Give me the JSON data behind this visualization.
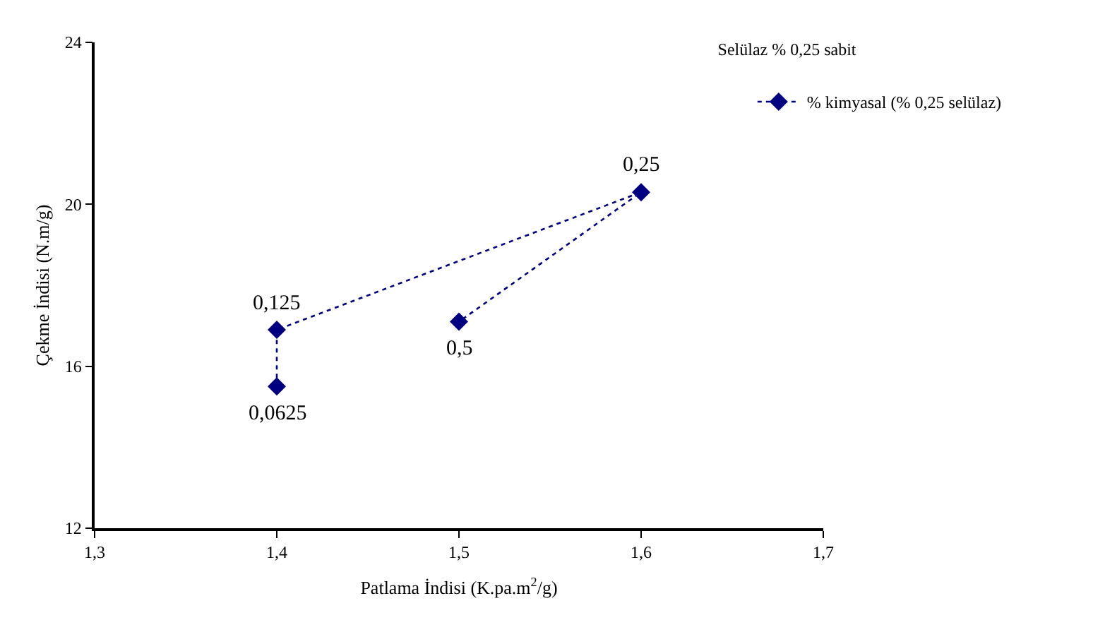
{
  "chart_data": {
    "type": "line",
    "title": "Selülaz % 0,25 sabit",
    "xlabel": "Patlama İndisi (K.pa.m$^{2}$/g)",
    "ylabel": "Çekme İndisi (N.m/g)",
    "series": [
      {
        "name": "% kimyasal (% 0,25 selülaz)",
        "color": "#000080",
        "x": [
          1.4,
          1.4,
          1.6,
          1.5
        ],
        "values": [
          15.5,
          16.9,
          20.3,
          17.1
        ]
      }
    ],
    "annotations": [
      {
        "text": "0,0625",
        "x": 1.4,
        "y": 15.5
      },
      {
        "text": "0,125",
        "x": 1.4,
        "y": 16.9
      },
      {
        "text": "0,25",
        "x": 1.6,
        "y": 20.3
      },
      {
        "text": "0,5",
        "x": 1.5,
        "y": 17.1
      }
    ],
    "xlim": [
      1.3,
      1.7
    ],
    "xticks": [
      {
        "value": 1.3,
        "label": "1,3"
      },
      {
        "value": 1.4,
        "label": "1,4"
      },
      {
        "value": 1.5,
        "label": "1,5"
      },
      {
        "value": 1.6,
        "label": "1,6"
      },
      {
        "value": 1.7,
        "label": "1,7"
      }
    ],
    "ylim": [
      12,
      24
    ],
    "yticks": [
      12,
      16,
      20,
      24
    ],
    "marker": "diamond",
    "line_style": "dotted",
    "legend": "top right"
  }
}
